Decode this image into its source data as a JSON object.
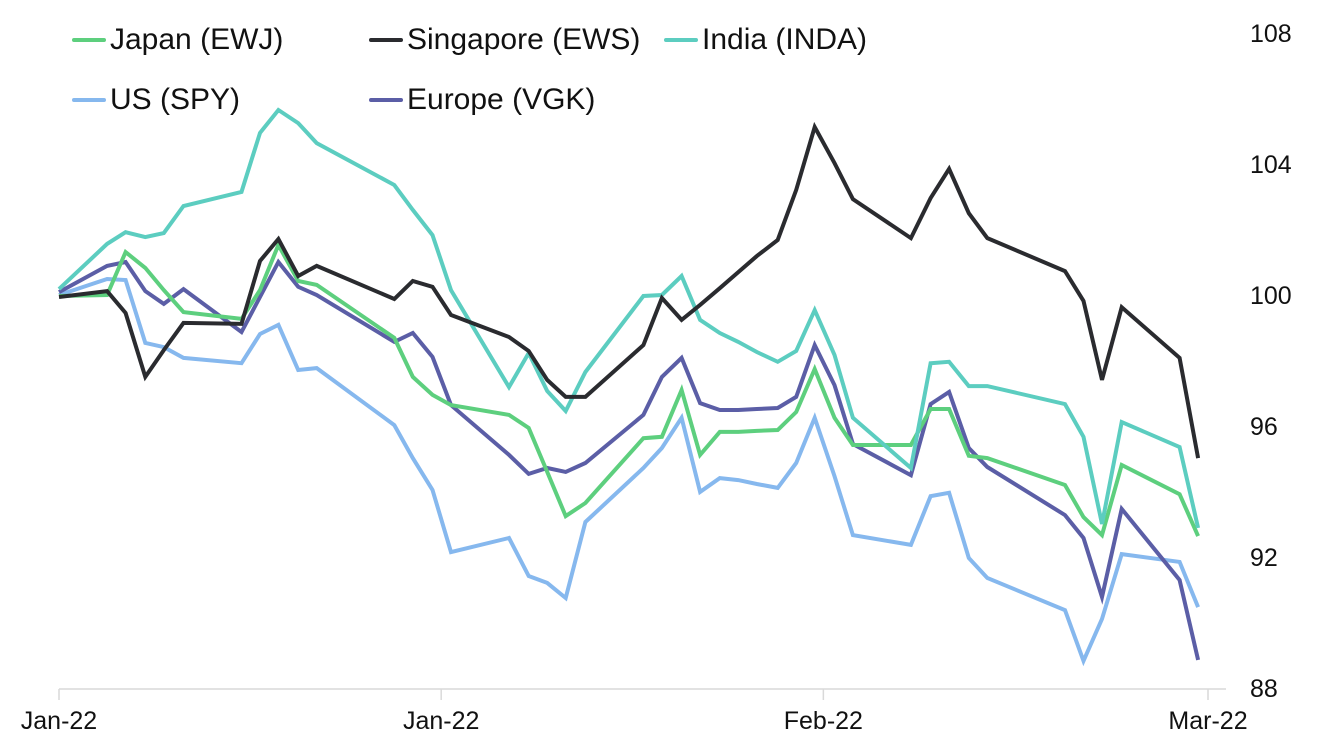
{
  "chart_data": {
    "type": "line",
    "title": "",
    "xlabel": "",
    "ylabel": "",
    "ylim": [
      88,
      108
    ],
    "yticks": [
      "88",
      "92",
      "96",
      "100",
      "104",
      "108"
    ],
    "y_axis_side": "right",
    "xlim": [
      0,
      93.2
    ],
    "xticks": [
      {
        "x": 0,
        "label": "Jan-22"
      },
      {
        "x": 31,
        "label": "Jan-22"
      },
      {
        "x": 62,
        "label": "Feb-22"
      },
      {
        "x": 93.2,
        "label": "Mar-22"
      }
    ],
    "grid": false,
    "legend_position": "top-left",
    "x": [
      0,
      3.9,
      5.4,
      7.0,
      8.5,
      10.1,
      14.8,
      16.3,
      17.8,
      19.4,
      20.9,
      27.2,
      28.7,
      30.3,
      31.8,
      36.5,
      38.1,
      39.6,
      41.1,
      42.7,
      47.4,
      48.9,
      50.5,
      52.0,
      53.6,
      55.1,
      56.6,
      58.3,
      59.8,
      61.3,
      62.9,
      64.4,
      69.1,
      70.7,
      72.2,
      73.8,
      75.3,
      81.6,
      83.1,
      84.6,
      86.2,
      90.9,
      92.4
    ],
    "series": [
      {
        "name": "Japan (EWJ)",
        "color": "#5dcf7e",
        "values": [
          100.03,
          100.06,
          101.37,
          100.89,
          100.21,
          99.54,
          99.33,
          100.21,
          101.59,
          100.49,
          100.37,
          98.75,
          97.56,
          97.01,
          96.7,
          96.4,
          96.0,
          94.66,
          93.31,
          93.71,
          95.69,
          95.73,
          97.16,
          95.18,
          95.88,
          95.88,
          95.91,
          95.94,
          96.49,
          97.8,
          96.31,
          95.48,
          95.48,
          96.58,
          96.58,
          95.15,
          95.08,
          94.26,
          93.28,
          92.73,
          94.87,
          93.98,
          92.7
        ]
      },
      {
        "name": "Singapore (EWS)",
        "color": "#2a2b2f",
        "values": [
          100.0,
          100.18,
          99.51,
          97.56,
          98.38,
          99.21,
          99.18,
          101.1,
          101.77,
          100.64,
          100.95,
          99.94,
          100.49,
          100.31,
          99.45,
          98.78,
          98.35,
          97.47,
          96.95,
          96.95,
          98.53,
          99.97,
          99.3,
          99.76,
          100.27,
          100.76,
          101.25,
          101.74,
          103.27,
          105.19,
          104.09,
          102.99,
          101.8,
          103.02,
          103.91,
          102.56,
          101.8,
          100.79,
          99.88,
          97.47,
          99.69,
          98.14,
          95.08
        ]
      },
      {
        "name": "India (INDA)",
        "color": "#5ccdc0",
        "values": [
          100.24,
          101.62,
          101.98,
          101.83,
          101.95,
          102.78,
          103.21,
          105.01,
          105.71,
          105.31,
          104.7,
          103.42,
          102.66,
          101.89,
          100.21,
          97.25,
          98.29,
          97.13,
          96.52,
          97.71,
          100.03,
          100.06,
          100.64,
          99.3,
          98.9,
          98.63,
          98.32,
          98.02,
          98.35,
          99.6,
          98.23,
          96.31,
          94.78,
          97.98,
          98.02,
          97.28,
          97.28,
          96.73,
          95.73,
          93.07,
          96.18,
          95.42,
          92.95
        ]
      },
      {
        "name": "US (SPY)",
        "color": "#86b8ee",
        "values": [
          100.06,
          100.55,
          100.52,
          98.6,
          98.47,
          98.14,
          97.98,
          98.87,
          99.15,
          97.77,
          97.83,
          96.09,
          95.08,
          94.11,
          92.21,
          92.64,
          91.48,
          91.27,
          90.81,
          93.13,
          94.78,
          95.39,
          96.31,
          94.05,
          94.47,
          94.41,
          94.29,
          94.17,
          94.93,
          96.31,
          94.53,
          92.73,
          92.43,
          93.92,
          94.02,
          92.03,
          91.42,
          90.44,
          88.89,
          90.17,
          92.15,
          91.91,
          90.53
        ]
      },
      {
        "name": "Europe (VGK)",
        "color": "#5b5ea6",
        "values": [
          100.15,
          100.95,
          101.07,
          100.18,
          99.79,
          100.24,
          98.93,
          100.0,
          101.07,
          100.31,
          100.06,
          98.63,
          98.9,
          98.17,
          96.7,
          95.18,
          94.6,
          94.78,
          94.66,
          94.93,
          96.4,
          97.56,
          98.14,
          96.76,
          96.55,
          96.55,
          96.58,
          96.61,
          96.95,
          98.53,
          97.31,
          95.51,
          94.56,
          96.73,
          97.1,
          95.39,
          94.81,
          93.34,
          92.64,
          90.84,
          93.53,
          91.36,
          88.92
        ]
      }
    ],
    "legend_order": [
      0,
      1,
      2,
      3,
      4
    ]
  },
  "axis_color": "#d9d9d9"
}
